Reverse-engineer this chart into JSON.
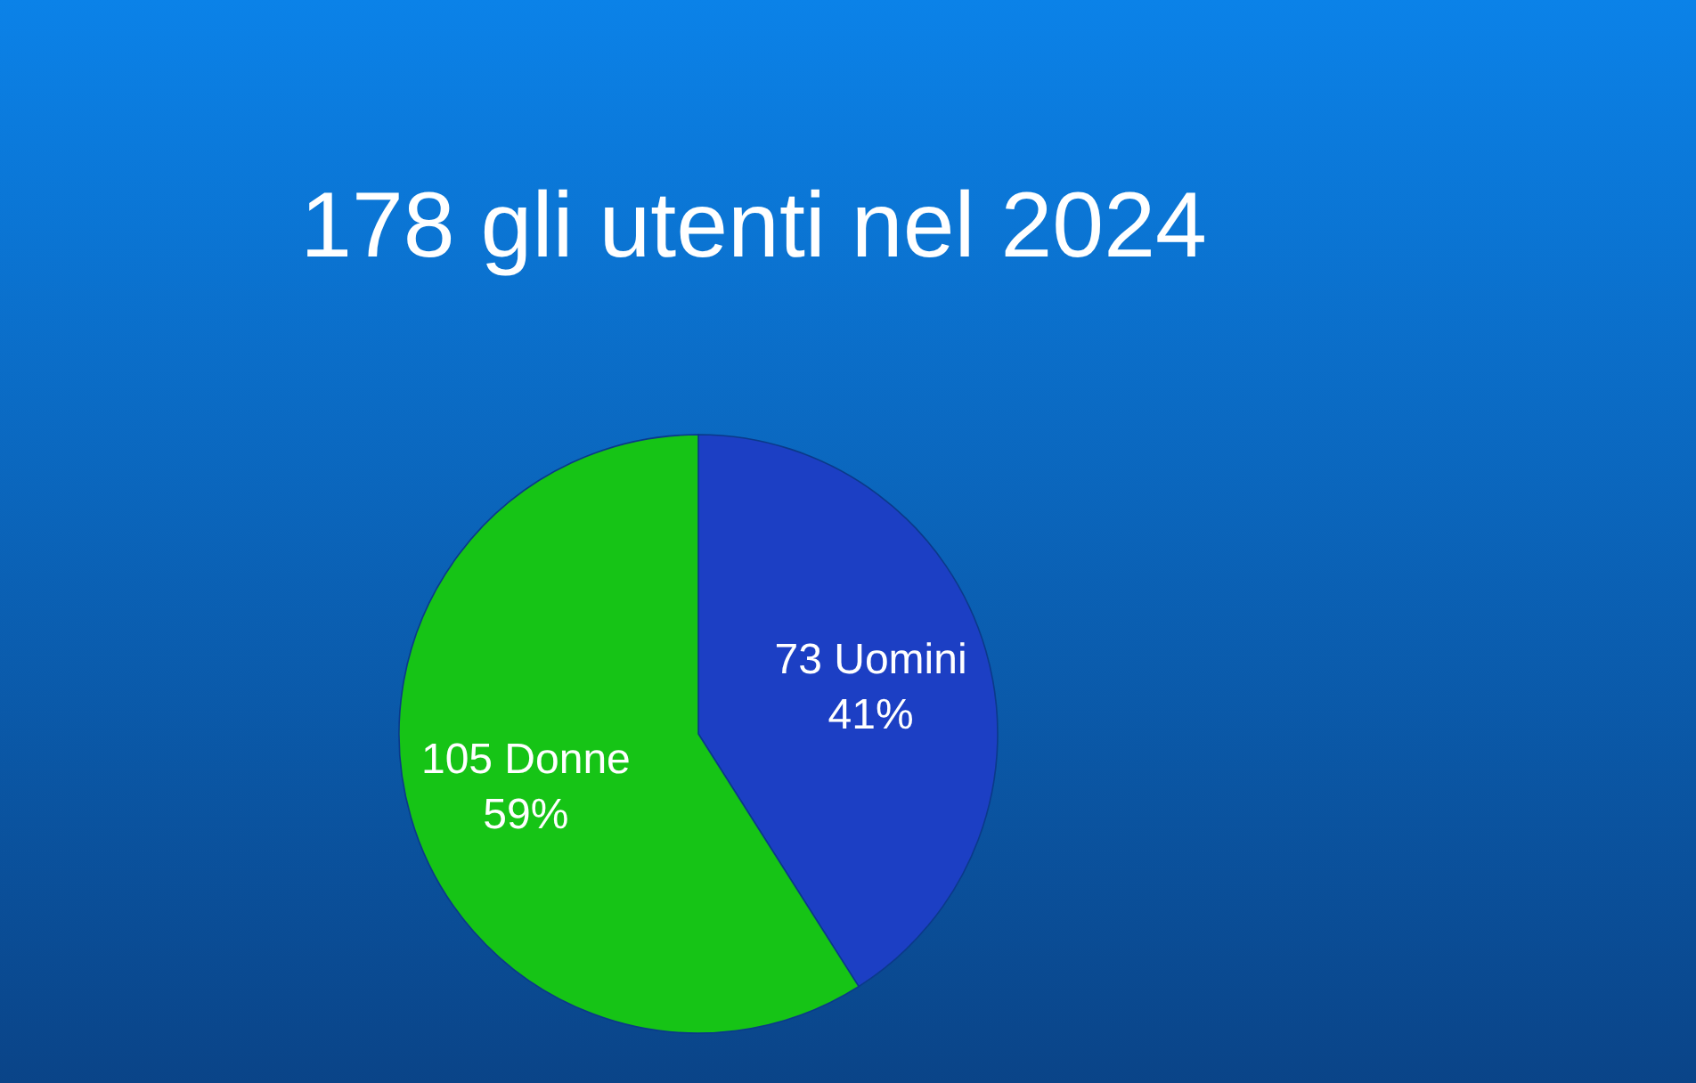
{
  "chart_data": {
    "type": "pie",
    "title": "178 gli utenti nel 2024",
    "categories": [
      "73 Uomini",
      "105 Donne"
    ],
    "values": [
      41,
      59
    ],
    "colors": [
      "#1c3fc4",
      "#16c416"
    ],
    "value_labels": [
      "41%",
      "59%"
    ]
  }
}
